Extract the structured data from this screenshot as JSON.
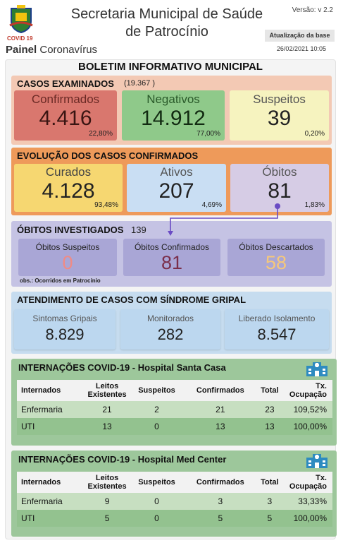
{
  "header": {
    "covid_tag": "COVID 19",
    "painel_bold": "Painel",
    "painel_rest": "Coronavírus",
    "title": "Secretaria Municipal de Saúde de Patrocínio",
    "version": "Versão: v 2.2",
    "update_label": "Atualização da base",
    "update_date": "26/02/2021 10:05"
  },
  "bulletin_title": "BOLETIM INFORMATIVO MUNICIPAL",
  "casos_examinados": {
    "title": "CASOS EXAMINADOS",
    "total": "(19.367 )",
    "cards": [
      {
        "label": "Confirmados",
        "value": "4.416",
        "pct": "22,80%"
      },
      {
        "label": "Negativos",
        "value": "14.912",
        "pct": "77,00%"
      },
      {
        "label": "Suspeitos",
        "value": "39",
        "pct": "0,20%"
      }
    ]
  },
  "evolucao": {
    "title": "EVOLUÇÃO DOS CASOS CONFIRMADOS",
    "cards": [
      {
        "label": "Curados",
        "value": "4.128",
        "pct": "93,48%"
      },
      {
        "label": "Ativos",
        "value": "207",
        "pct": "4,69%"
      },
      {
        "label": "Óbitos",
        "value": "81",
        "pct": "1,83%"
      }
    ]
  },
  "obitos_investigados": {
    "title": "ÓBITOS INVESTIGADOS",
    "total": "139",
    "note": "obs.: Ocorridos em Patrocínio",
    "cards": [
      {
        "label": "Óbitos Suspeitos",
        "value": "0"
      },
      {
        "label": "Óbitos Confirmados",
        "value": "81"
      },
      {
        "label": "Óbitos Descartados",
        "value": "58"
      }
    ]
  },
  "sindrome": {
    "title": "ATENDIMENTO DE CASOS COM SÍNDROME GRIPAL",
    "cards": [
      {
        "label": "Sintomas Gripais",
        "value": "8.829"
      },
      {
        "label": "Monitorados",
        "value": "282"
      },
      {
        "label": "Liberado Isolamento",
        "value": "8.547"
      }
    ]
  },
  "hospitals": [
    {
      "title": "INTERNAÇÕES COVID-19 - Hospital Santa Casa",
      "headers": [
        "Internados",
        "Leitos Existentes",
        "Suspeitos",
        "Confirmados",
        "Total",
        "Tx. Ocupação"
      ],
      "rows": [
        [
          "Enfermaria",
          "21",
          "2",
          "21",
          "23",
          "109,52%"
        ],
        [
          "UTI",
          "13",
          "0",
          "13",
          "13",
          "100,00%"
        ]
      ]
    },
    {
      "title": "INTERNAÇÕES COVID-19 - Hospital Med Center",
      "headers": [
        "Internados",
        "Leitos Existentes",
        "Suspeitos",
        "Confirmados",
        "Total",
        "Tx. Ocupação"
      ],
      "rows": [
        [
          "Enfermaria",
          "9",
          "0",
          "3",
          "3",
          "33,33%"
        ],
        [
          "UTI",
          "5",
          "0",
          "5",
          "5",
          "100,00%"
        ]
      ]
    }
  ],
  "colors": {
    "casos_bg": "#f3c9b4",
    "confirmados": "#d9776e",
    "negativos": "#8fc98a",
    "suspeitos": "#f6f3bf",
    "evolucao_bg": "#ee9a5a",
    "curados": "#f6d771",
    "ativos": "#c9def3",
    "obitos": "#d6cce5",
    "obitos_inv_bg": "#c5c3e4",
    "obitos_card": "#a9a6d6",
    "sindrome_bg": "#c6dcef",
    "sindrome_card": "#bcd7ef",
    "hosp_bg": "#9dc79b"
  }
}
